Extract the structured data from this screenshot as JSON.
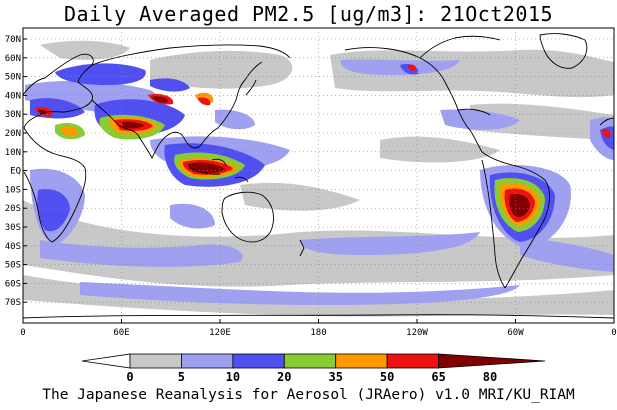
{
  "title": "Daily Averaged PM2.5 [ug/m3]: 21Oct2015",
  "footer": "The Japanese Reanalysis for Aerosol (JRAero) v1.0 MRI/KU_RIAM",
  "lat_labels": [
    "70N",
    "60N",
    "50N",
    "40N",
    "30N",
    "20N",
    "10N",
    "EQ",
    "10S",
    "20S",
    "30S",
    "40S",
    "50S",
    "60S",
    "70S"
  ],
  "lon_labels": [
    "0",
    "60E",
    "120E",
    "180",
    "120W",
    "60W",
    "0"
  ],
  "colorbar": {
    "thresholds": [
      "0",
      "5",
      "10",
      "20",
      "35",
      "50",
      "65",
      "80"
    ],
    "colors": [
      "#ffffff",
      "#c8c8c8",
      "#a0a0f0",
      "#5050f0",
      "#88cc33",
      "#ff9900",
      "#ee1111",
      "#800000"
    ]
  }
}
